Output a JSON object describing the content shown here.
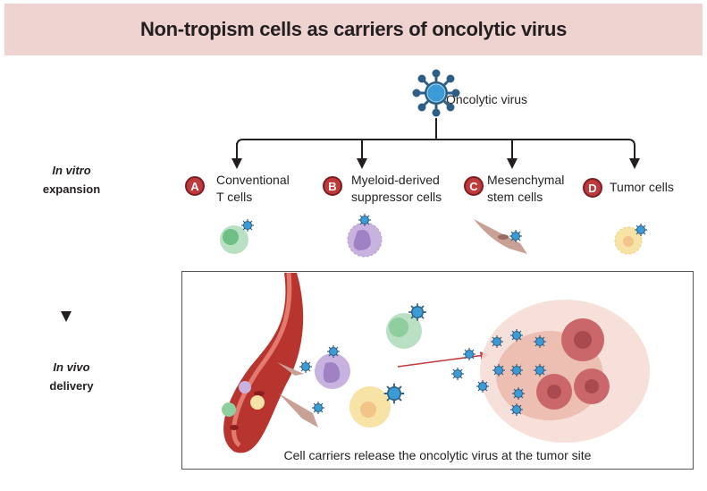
{
  "title": "Non-tropism cells as carriers of oncolytic virus",
  "virus_label": "Oncolytic virus",
  "stages": {
    "in_vitro_italic": "In vitro",
    "in_vitro": "expansion",
    "in_vivo_italic": "In vivo",
    "in_vivo": "delivery"
  },
  "carriers": [
    {
      "letter": "A",
      "line1": "Conventional",
      "line2": "T cells",
      "color": "#8fcf9f"
    },
    {
      "letter": "B",
      "line1": "Myeloid-derived",
      "line2": "suppressor cells",
      "color": "#b69bd1"
    },
    {
      "letter": "C",
      "line1": "Mesenchymal",
      "line2": "stem cells",
      "color": "#c9a095"
    },
    {
      "letter": "D",
      "line1": "Tumor cells",
      "line2": "",
      "color": "#f7e3a6"
    }
  ],
  "caption": "Cell carriers release the oncolytic virus at the tumor site",
  "colors": {
    "banner": "#efd3d0",
    "badge": "#c0393b",
    "virus": "#3a9bd5",
    "vessel": "#b8342f",
    "arrow": "#c0393b"
  }
}
